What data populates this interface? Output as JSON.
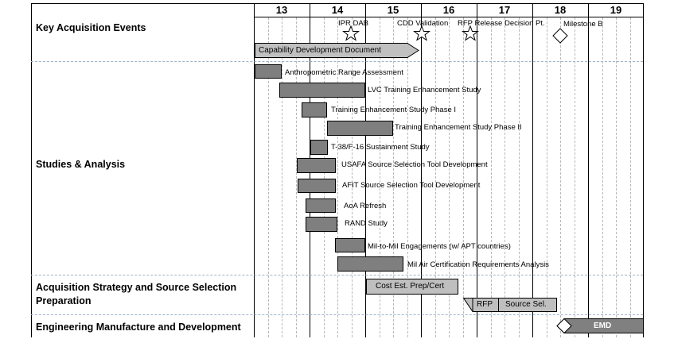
{
  "years": [
    "13",
    "14",
    "15",
    "16",
    "17",
    "18",
    "19"
  ],
  "sections": {
    "key_events": "Key Acquisition Events",
    "studies": "Studies & Analysis",
    "acq_strategy": "Acquisition Strategy and Source Selection Preparation",
    "emd_section": "Engineering Manufacture and Development"
  },
  "events": {
    "ipr": "IPR DAB",
    "cdd": "CDD Validation",
    "rfp_release": "RFP Release Decision Pt.",
    "milestone_b": "Milestone B"
  },
  "cdd_doc": "Capability Development Document",
  "studies": [
    "Anthropometric Range Assessment",
    "LVC Training Enhancement Study",
    "Training Enhancement Study Phase I",
    "Training Enhancement Study Phase II",
    "T-38/F-16 Sustainment Study",
    "USAFA Source Selection Tool Development",
    "AFIT Source Selection Tool Development",
    "AoA Refresh",
    "RAND Study",
    "Mil-to-Mil Engagements (w/ APT countries)",
    "Mil Air Certification Requirements Analysis"
  ],
  "acq": {
    "cost": "Cost Est. Prep/Cert",
    "rfp": "RFP",
    "source_sel": "Source Sel."
  },
  "emd": "EMD",
  "colors": {
    "bar": "#7f7f7f",
    "light_bar": "#bfbfbf",
    "cdd_bar": "#c0c0c0",
    "emd_bar": "#808080"
  }
}
